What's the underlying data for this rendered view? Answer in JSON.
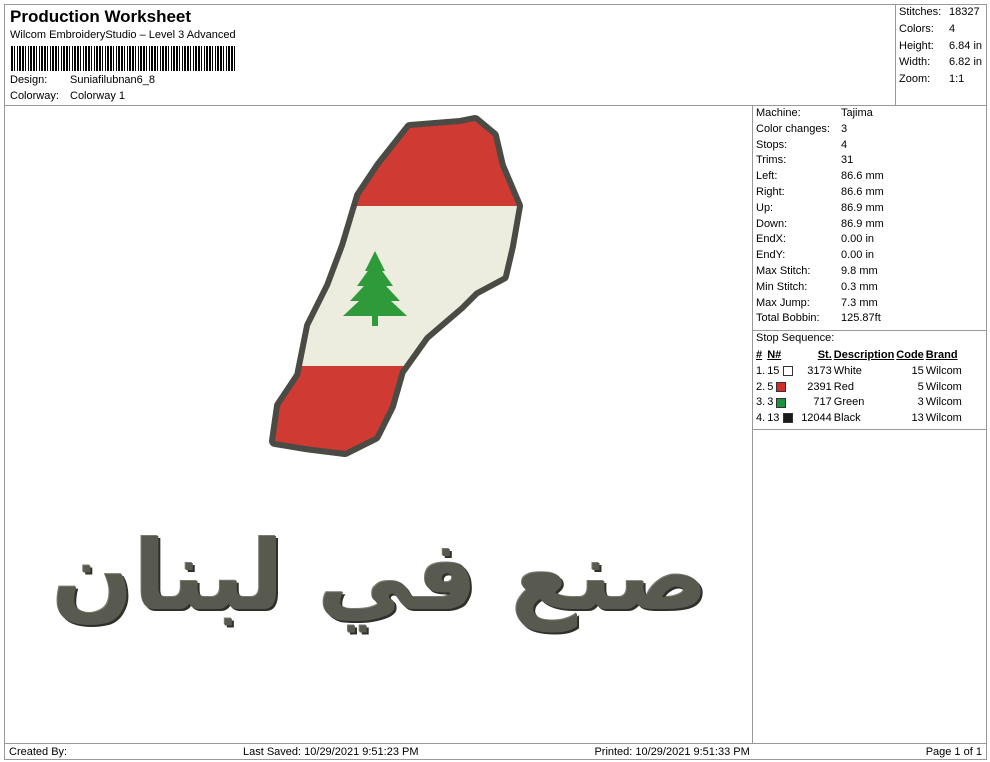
{
  "header": {
    "title": "Production Worksheet",
    "subtitle": "Wilcom EmbroideryStudio – Level 3 Advanced",
    "design_label": "Design:",
    "design_value": "Suniafilubnan6_8",
    "colorway_label": "Colorway:",
    "colorway_value": "Colorway 1"
  },
  "stats": [
    {
      "k": "Stitches:",
      "v": "18327"
    },
    {
      "k": "Colors:",
      "v": "4"
    },
    {
      "k": "Height:",
      "v": "6.84 in"
    },
    {
      "k": "Width:",
      "v": "6.82 in"
    },
    {
      "k": "Zoom:",
      "v": "1:1"
    }
  ],
  "info": [
    {
      "k": "Machine:",
      "v": "Tajima"
    },
    {
      "k": "Color changes:",
      "v": "3"
    },
    {
      "k": "Stops:",
      "v": "4"
    },
    {
      "k": "Trims:",
      "v": "31"
    },
    {
      "k": "Left:",
      "v": "86.6 mm"
    },
    {
      "k": "Right:",
      "v": "86.6 mm"
    },
    {
      "k": "Up:",
      "v": "86.9 mm"
    },
    {
      "k": "Down:",
      "v": "86.9 mm"
    },
    {
      "k": "EndX:",
      "v": "0.00 in"
    },
    {
      "k": "EndY:",
      "v": "0.00 in"
    },
    {
      "k": "Max Stitch:",
      "v": "9.8 mm"
    },
    {
      "k": "Min Stitch:",
      "v": "0.3 mm"
    },
    {
      "k": "Max Jump:",
      "v": "7.3 mm"
    },
    {
      "k": "Total Bobbin:",
      "v": "125.87ft"
    }
  ],
  "stop_sequence": {
    "label": "Stop Sequence:",
    "headers": [
      "#",
      "N#",
      "St.",
      "Description",
      "Code",
      "Brand"
    ],
    "rows": [
      {
        "i": "1.",
        "n": "15",
        "color": "#ffffff",
        "st": "3173",
        "desc": "White",
        "code": "15",
        "brand": "Wilcom"
      },
      {
        "i": "2.",
        "n": "5",
        "color": "#d42a2a",
        "st": "2391",
        "desc": "Red",
        "code": "5",
        "brand": "Wilcom"
      },
      {
        "i": "3.",
        "n": "3",
        "color": "#1e8f3a",
        "st": "717",
        "desc": "Green",
        "code": "3",
        "brand": "Wilcom"
      },
      {
        "i": "4.",
        "n": "13",
        "color": "#1a1a1a",
        "st": "12044",
        "desc": "Black",
        "code": "13",
        "brand": "Wilcom"
      }
    ]
  },
  "artwork": {
    "text": "صنع في لبنان",
    "flag_colors": {
      "red": "#cf3a32",
      "white": "#ececdf",
      "green": "#2f9a3a",
      "outline": "#4a4b44"
    }
  },
  "footer": {
    "created": "Created By:",
    "saved": "Last Saved: 10/29/2021 9:51:23 PM",
    "printed": "Printed: 10/29/2021 9:51:33 PM",
    "page": "Page 1 of 1"
  }
}
